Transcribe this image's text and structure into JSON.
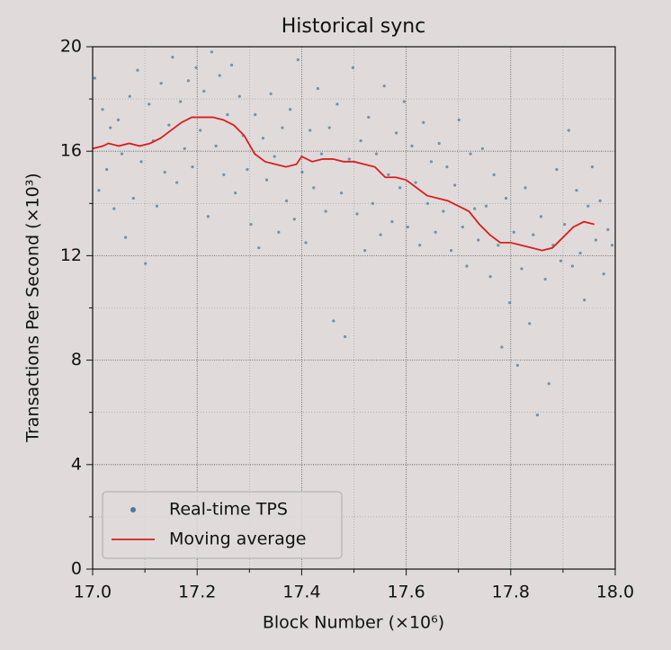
{
  "chart_data": {
    "type": "scatter",
    "title": "Historical sync",
    "xlabel": "Block Number (×10⁶)",
    "ylabel": "Transactions Per Second (×10³)",
    "xlim": [
      17,
      18
    ],
    "ylim": [
      0,
      20
    ],
    "xticks": [
      {
        "value": 17,
        "label": "17.0"
      },
      17.2,
      17.4,
      17.6,
      17.8,
      {
        "value": 18,
        "label": "18.0"
      }
    ],
    "yticks": [
      0,
      4,
      8,
      12,
      16,
      20
    ],
    "xminorticks": [
      17.1,
      17.3,
      17.5,
      17.7,
      17.9
    ],
    "yminorticks": [
      2,
      6,
      10,
      14,
      18
    ],
    "grid": true,
    "legend": "lower left",
    "series": [
      {
        "name": "Real-time TPS",
        "type": "scatter",
        "color": "#4a7aa3",
        "x": [
          17.004,
          17.012,
          17.019,
          17.027,
          17.034,
          17.041,
          17.049,
          17.056,
          17.063,
          17.071,
          17.078,
          17.086,
          17.093,
          17.101,
          17.108,
          17.116,
          17.123,
          17.131,
          17.138,
          17.146,
          17.153,
          17.161,
          17.168,
          17.176,
          17.183,
          17.191,
          17.198,
          17.206,
          17.213,
          17.221,
          17.228,
          17.236,
          17.243,
          17.251,
          17.258,
          17.266,
          17.273,
          17.281,
          17.288,
          17.296,
          17.303,
          17.311,
          17.318,
          17.326,
          17.333,
          17.341,
          17.348,
          17.356,
          17.363,
          17.371,
          17.378,
          17.386,
          17.393,
          17.401,
          17.408,
          17.416,
          17.423,
          17.431,
          17.438,
          17.446,
          17.453,
          17.461,
          17.468,
          17.476,
          17.483,
          17.491,
          17.498,
          17.506,
          17.513,
          17.521,
          17.528,
          17.536,
          17.543,
          17.551,
          17.558,
          17.566,
          17.573,
          17.581,
          17.588,
          17.596,
          17.603,
          17.611,
          17.618,
          17.626,
          17.633,
          17.641,
          17.648,
          17.656,
          17.663,
          17.671,
          17.678,
          17.686,
          17.693,
          17.701,
          17.708,
          17.716,
          17.723,
          17.731,
          17.738,
          17.746,
          17.753,
          17.761,
          17.768,
          17.776,
          17.783,
          17.791,
          17.798,
          17.806,
          17.813,
          17.821,
          17.828,
          17.836,
          17.843,
          17.851,
          17.858,
          17.866,
          17.873,
          17.881,
          17.888,
          17.896,
          17.903,
          17.911,
          17.918,
          17.926,
          17.933,
          17.941,
          17.948,
          17.956,
          17.963,
          17.971,
          17.978,
          17.986,
          17.994
        ],
        "values": [
          18.8,
          14.5,
          17.6,
          15.3,
          16.9,
          13.8,
          17.2,
          15.9,
          12.7,
          18.1,
          14.2,
          19.1,
          15.6,
          11.7,
          17.8,
          16.4,
          13.9,
          18.6,
          15.2,
          17.0,
          19.6,
          14.8,
          17.9,
          16.1,
          18.7,
          15.4,
          19.2,
          16.8,
          18.3,
          13.5,
          19.8,
          16.2,
          18.9,
          15.1,
          17.4,
          19.3,
          14.4,
          18.1,
          16.6,
          15.3,
          13.2,
          17.4,
          12.3,
          16.5,
          14.9,
          18.2,
          15.8,
          12.9,
          16.9,
          14.1,
          17.6,
          13.4,
          19.5,
          15.2,
          12.5,
          16.8,
          14.6,
          18.4,
          15.9,
          13.7,
          16.9,
          9.5,
          17.8,
          14.4,
          8.9,
          15.7,
          19.2,
          13.6,
          16.4,
          12.2,
          17.3,
          14.0,
          15.9,
          12.8,
          18.5,
          15.1,
          13.3,
          16.7,
          14.6,
          17.9,
          13.1,
          16.2,
          14.8,
          12.4,
          17.1,
          14.0,
          15.6,
          12.9,
          16.3,
          13.7,
          15.4,
          12.2,
          14.7,
          17.2,
          13.1,
          11.6,
          15.9,
          13.8,
          12.6,
          16.1,
          13.9,
          11.2,
          15.1,
          12.4,
          8.5,
          14.2,
          10.2,
          12.9,
          7.8,
          11.5,
          14.6,
          9.4,
          12.8,
          5.9,
          13.5,
          11.1,
          7.1,
          12.4,
          15.3,
          11.8,
          13.2,
          16.8,
          11.6,
          14.5,
          12.1,
          10.3,
          13.9,
          15.4,
          12.6,
          14.1,
          11.3,
          13.0,
          12.4
        ]
      },
      {
        "name": "Moving average",
        "type": "line",
        "color": "#d91e1e",
        "x": [
          17.0,
          17.02,
          17.03,
          17.05,
          17.07,
          17.09,
          17.11,
          17.13,
          17.15,
          17.17,
          17.19,
          17.21,
          17.23,
          17.25,
          17.27,
          17.29,
          17.31,
          17.33,
          17.35,
          17.37,
          17.39,
          17.4,
          17.42,
          17.44,
          17.46,
          17.48,
          17.5,
          17.52,
          17.54,
          17.56,
          17.58,
          17.6,
          17.62,
          17.64,
          17.66,
          17.68,
          17.7,
          17.72,
          17.74,
          17.76,
          17.78,
          17.8,
          17.82,
          17.84,
          17.86,
          17.88,
          17.9,
          17.92,
          17.94,
          17.96
        ],
        "values": [
          16.1,
          16.2,
          16.3,
          16.2,
          16.3,
          16.2,
          16.3,
          16.5,
          16.8,
          17.1,
          17.3,
          17.3,
          17.3,
          17.2,
          17.0,
          16.6,
          15.9,
          15.6,
          15.5,
          15.4,
          15.5,
          15.8,
          15.6,
          15.7,
          15.7,
          15.6,
          15.6,
          15.5,
          15.4,
          15.0,
          15.0,
          14.9,
          14.6,
          14.3,
          14.2,
          14.1,
          13.9,
          13.7,
          13.2,
          12.8,
          12.5,
          12.5,
          12.4,
          12.3,
          12.2,
          12.3,
          12.7,
          13.1,
          13.3,
          13.2
        ]
      }
    ]
  }
}
